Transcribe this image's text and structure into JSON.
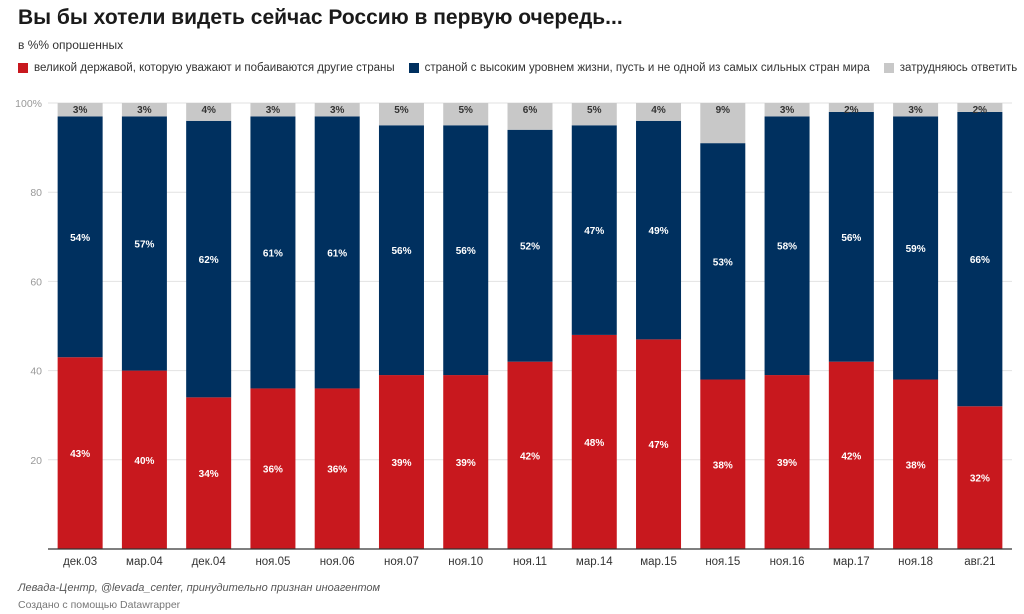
{
  "title": "Вы бы хотели видеть сейчас Россию в первую очередь...",
  "subtitle": "в %% опрошенных",
  "footer": {
    "source": "Левада-Центр, @levada_center, принудительно признан иноагентом",
    "made_with": "Создано с помощью Datawrapper"
  },
  "chart_data": {
    "type": "bar",
    "stacked": true,
    "categories": [
      "дек.03",
      "мар.04",
      "дек.04",
      "ноя.05",
      "ноя.06",
      "ноя.07",
      "ноя.10",
      "ноя.11",
      "мар.14",
      "мар.15",
      "ноя.15",
      "ноя.16",
      "мар.17",
      "ноя.18",
      "авг.21"
    ],
    "series": [
      {
        "name": "великой державой, которую уважают и побаиваются другие страны",
        "color": "#c8181e",
        "values": [
          43,
          40,
          34,
          36,
          36,
          39,
          39,
          42,
          48,
          47,
          38,
          39,
          42,
          38,
          32
        ]
      },
      {
        "name": "страной с высоким уровнем жизни, пусть и не одной из самых сильных стран мира",
        "color": "#00305f",
        "values": [
          54,
          57,
          62,
          61,
          61,
          56,
          56,
          52,
          47,
          49,
          53,
          58,
          56,
          59,
          66
        ]
      },
      {
        "name": "затрудняюсь ответить",
        "color": "#c8c8c8",
        "values": [
          3,
          3,
          4,
          3,
          3,
          5,
          5,
          6,
          5,
          4,
          9,
          3,
          2,
          3,
          2
        ]
      }
    ],
    "yticks": [
      20,
      40,
      60,
      80,
      100
    ],
    "ytick_suffix_top": "%",
    "ylim": [
      0,
      100
    ],
    "grid": true,
    "legend_position": "top-left",
    "data_labels": true,
    "label_suffix": "%"
  }
}
